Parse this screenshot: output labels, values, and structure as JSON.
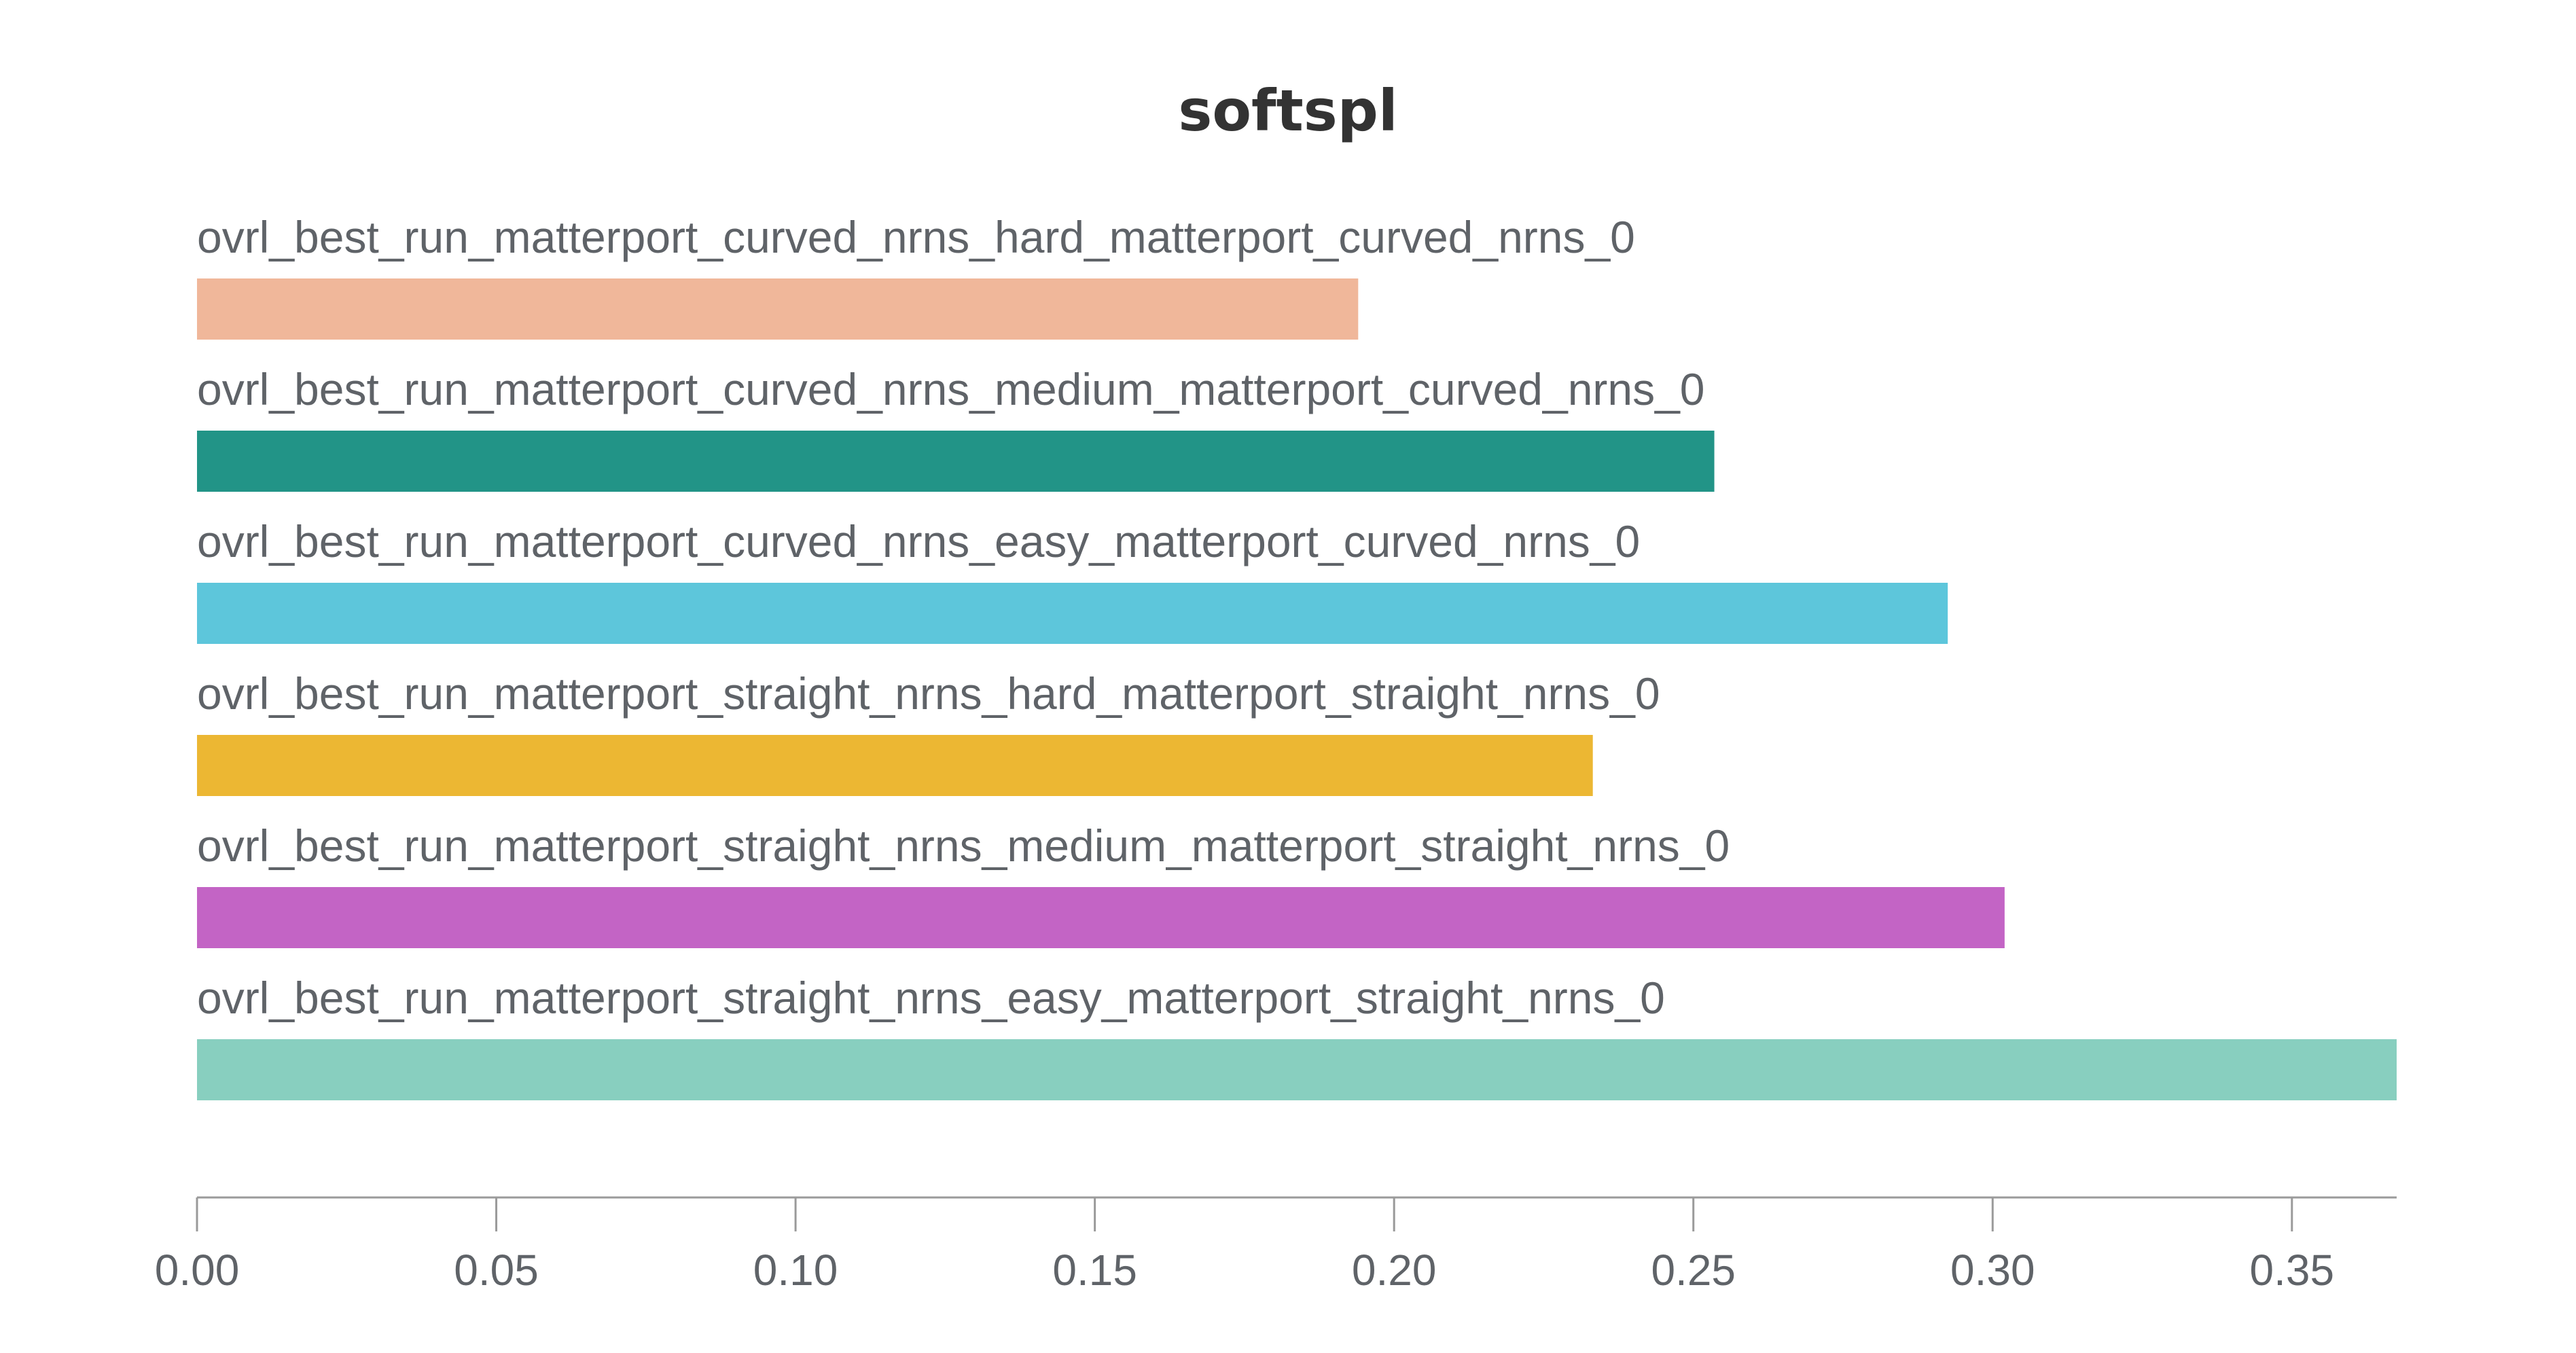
{
  "chart_data": {
    "type": "bar",
    "orientation": "horizontal",
    "title": "softspl",
    "xlabel": "",
    "ylabel": "",
    "xlim": [
      0,
      0.3675
    ],
    "x_ticks": [
      "0.00",
      "0.05",
      "0.10",
      "0.15",
      "0.20",
      "0.25",
      "0.30",
      "0.35"
    ],
    "x_tick_values": [
      0,
      0.05,
      0.1,
      0.15,
      0.2,
      0.25,
      0.3,
      0.35
    ],
    "grid": false,
    "legend": "none",
    "categories": [
      "ovrl_best_run_matterport_curved_nrns_hard_matterport_curved_nrns_0",
      "ovrl_best_run_matterport_curved_nrns_medium_matterport_curved_nrns_0",
      "ovrl_best_run_matterport_curved_nrns_easy_matterport_curved_nrns_0",
      "ovrl_best_run_matterport_straight_nrns_hard_matterport_straight_nrns_0",
      "ovrl_best_run_matterport_straight_nrns_medium_matterport_straight_nrns_0",
      "ovrl_best_run_matterport_straight_nrns_easy_matterport_straight_nrns_0"
    ],
    "values": [
      0.194,
      0.2535,
      0.2925,
      0.2332,
      0.302,
      0.3675
    ],
    "colors": [
      "#f0b79a",
      "#229487",
      "#5dc6db",
      "#ecb733",
      "#c364c5",
      "#88cfbf"
    ]
  }
}
